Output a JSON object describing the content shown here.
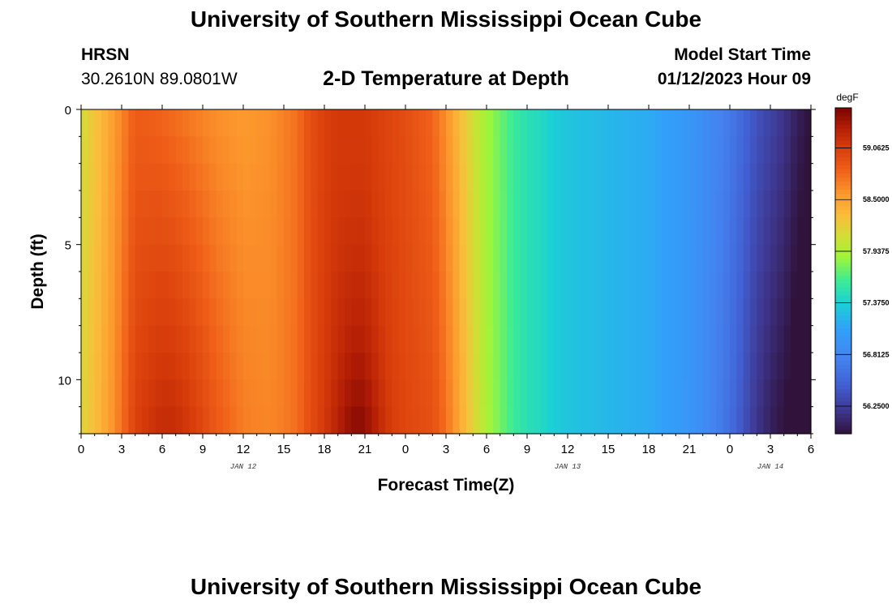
{
  "header": {
    "title": "University of Southern Mississippi Ocean Cube",
    "station": "HRSN",
    "coordinates": "30.2610N  89.0801W",
    "subtitle": "2-D Temperature at Depth",
    "start_label": "Model Start Time",
    "start_value": "01/12/2023 Hour 09"
  },
  "footer": {
    "title": "University of Southern Mississippi Ocean Cube"
  },
  "chart_data": {
    "type": "heatmap",
    "title": "2-D Temperature at Depth",
    "xlabel": "Forecast Time(Z)",
    "ylabel": "Depth (ft)",
    "x_unit": "hours since 2023-01-12 00Z",
    "x_range": [
      0,
      54
    ],
    "x_ticks": [
      {
        "value": 0,
        "label": "0"
      },
      {
        "value": 3,
        "label": "3"
      },
      {
        "value": 6,
        "label": "6"
      },
      {
        "value": 9,
        "label": "9"
      },
      {
        "value": 12,
        "label": "12"
      },
      {
        "value": 15,
        "label": "15"
      },
      {
        "value": 18,
        "label": "18"
      },
      {
        "value": 21,
        "label": "21"
      },
      {
        "value": 24,
        "label": "0"
      },
      {
        "value": 27,
        "label": "3"
      },
      {
        "value": 30,
        "label": "6"
      },
      {
        "value": 33,
        "label": "9"
      },
      {
        "value": 36,
        "label": "12"
      },
      {
        "value": 39,
        "label": "15"
      },
      {
        "value": 42,
        "label": "18"
      },
      {
        "value": 45,
        "label": "21"
      },
      {
        "value": 48,
        "label": "0"
      },
      {
        "value": 51,
        "label": "3"
      },
      {
        "value": 54,
        "label": "6"
      }
    ],
    "date_labels": [
      {
        "value": 12,
        "label": "JAN 12"
      },
      {
        "value": 36,
        "label": "JAN 13"
      },
      {
        "value": 51,
        "label": "JAN 14"
      }
    ],
    "y_range": [
      0,
      12
    ],
    "y_ticks": [
      {
        "value": 0,
        "label": "0"
      },
      {
        "value": 5,
        "label": "5"
      },
      {
        "value": 10,
        "label": "10"
      }
    ],
    "colorbar": {
      "unit": "degF",
      "range": [
        55.95,
        59.5
      ],
      "tick_labels": [
        "59.0625",
        "58.5000",
        "57.9375",
        "57.3750",
        "56.8125",
        "56.2500"
      ],
      "tick_values": [
        59.0625,
        58.5,
        57.9375,
        57.375,
        56.8125,
        56.25
      ]
    },
    "temperature_model": {
      "depth_levels_ft": [
        0,
        2,
        4,
        6,
        8,
        10,
        12
      ],
      "surface_profile": {
        "hours": [
          0,
          2,
          4,
          6,
          8,
          10,
          12,
          14,
          16,
          17,
          18,
          19,
          20,
          21,
          22,
          24,
          26,
          27,
          28,
          29,
          30,
          31,
          32,
          33,
          34,
          35,
          36,
          38,
          40,
          42,
          44,
          46,
          47,
          48,
          49,
          50,
          51,
          52,
          53,
          54
        ],
        "degF": [
          58.1,
          58.45,
          58.85,
          58.8,
          58.7,
          58.6,
          58.55,
          58.6,
          58.75,
          58.95,
          59.05,
          59.1,
          59.1,
          59.1,
          59.05,
          58.95,
          58.8,
          58.6,
          58.35,
          58.1,
          57.9,
          57.75,
          57.6,
          57.5,
          57.45,
          57.35,
          57.3,
          57.25,
          57.2,
          57.15,
          57.05,
          56.9,
          56.8,
          56.7,
          56.55,
          56.4,
          56.3,
          56.2,
          56.05,
          55.95
        ]
      }
    }
  }
}
